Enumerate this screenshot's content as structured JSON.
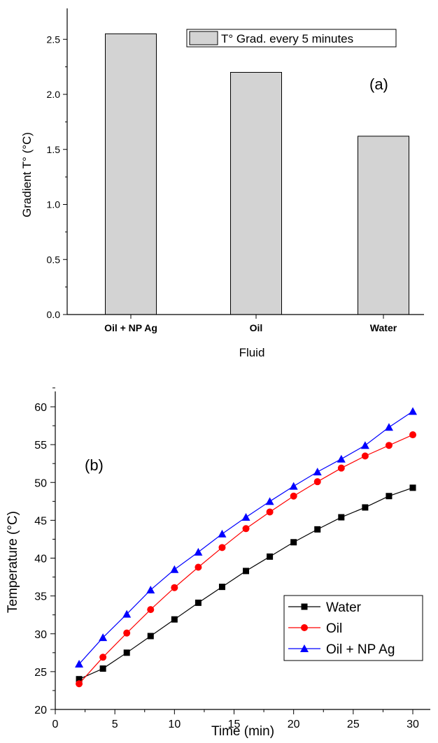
{
  "chart_data": [
    {
      "panel_label": "(a)",
      "type": "bar",
      "categories": [
        "Oil + NP Ag",
        "Oil",
        "Water"
      ],
      "values": [
        2.55,
        2.2,
        1.62
      ],
      "xlabel": "Fluid",
      "ylabel": "Gradient T° (°C)",
      "ylim": [
        0,
        2.75
      ],
      "yticks": [
        "0.0",
        "0.5",
        "1.0",
        "1.5",
        "2.0",
        "2.5"
      ],
      "legend": {
        "position": "top-right",
        "entries": [
          "T° Grad. every 5 minutes"
        ]
      },
      "bar_color": "#d3d3d3",
      "grid": false
    },
    {
      "panel_label": "(b)",
      "type": "line",
      "x": [
        2,
        4,
        6,
        8,
        10,
        12,
        14,
        16,
        18,
        20,
        22,
        24,
        26,
        28,
        30
      ],
      "series": [
        {
          "name": "Water",
          "color": "#000000",
          "marker": "square",
          "values": [
            24.0,
            25.4,
            27.5,
            29.7,
            31.9,
            34.1,
            36.2,
            38.3,
            40.2,
            42.1,
            43.8,
            45.4,
            46.7,
            48.2,
            49.3
          ]
        },
        {
          "name": "Oil",
          "color": "#ff0000",
          "marker": "circle",
          "values": [
            23.4,
            26.9,
            30.1,
            33.2,
            36.1,
            38.8,
            41.4,
            43.9,
            46.1,
            48.2,
            50.1,
            51.9,
            53.5,
            54.9,
            56.3
          ]
        },
        {
          "name": "Oil + NP Ag",
          "color": "#0000ff",
          "marker": "triangle",
          "values": [
            26.0,
            29.5,
            32.6,
            35.8,
            38.5,
            40.8,
            43.2,
            45.4,
            47.5,
            49.5,
            51.4,
            53.1,
            54.9,
            57.3,
            59.4
          ]
        }
      ],
      "xlabel": "Time (min)",
      "ylabel": "Temperature (°C)",
      "xlim": [
        0,
        32
      ],
      "ylim": [
        20,
        62.5
      ],
      "xticks": [
        "0",
        "5",
        "10",
        "15",
        "20",
        "25",
        "30"
      ],
      "yticks": [
        "20",
        "25",
        "30",
        "35",
        "40",
        "45",
        "50",
        "55",
        "60"
      ],
      "legend": {
        "position": "bottom-right"
      },
      "grid": false
    }
  ]
}
